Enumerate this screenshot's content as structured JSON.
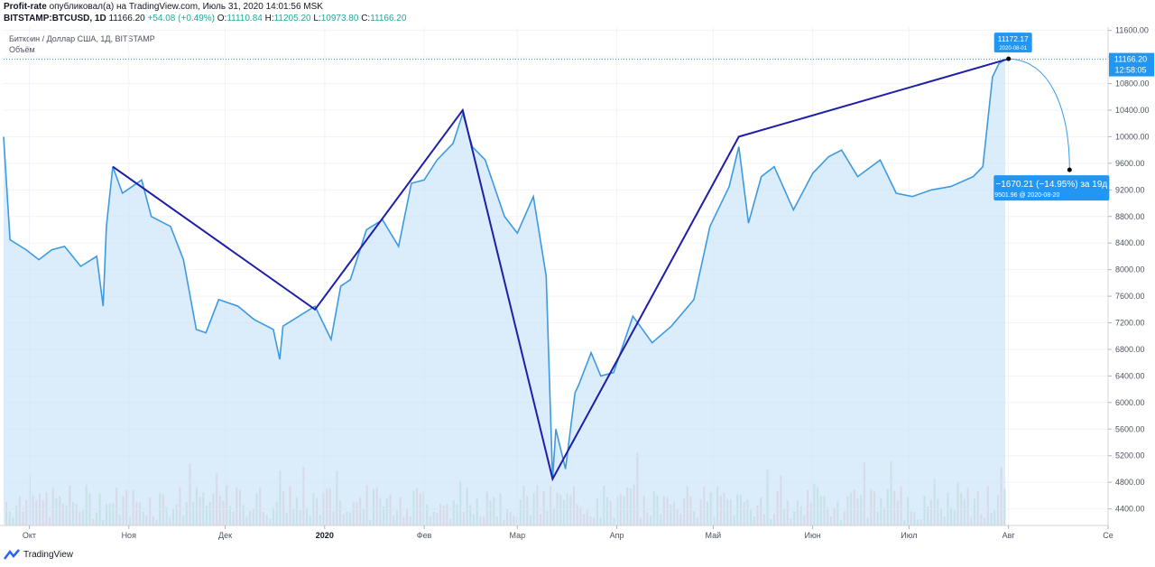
{
  "header": {
    "author": "Profit-rate",
    "published_text": "опубликовал(а) на TradingView.com, Июль 31, 2020 14:01:56 MSK",
    "symbol": "BITSTAMP:BTCUSD, 1D",
    "last_price": "11166.20",
    "change": "+54.08 (+0.49%)",
    "o_label": "O:",
    "o_value": "11110.84",
    "h_label": "H:",
    "h_value": "11205.20",
    "l_label": "L:",
    "l_value": "10973.80",
    "c_label": "C:",
    "c_value": "11166.20"
  },
  "legend": {
    "title": "Биткоин / Доллар США, 1Д, BITSTAMP",
    "volume": "Объём"
  },
  "price_label": {
    "value": "11166.20",
    "time": "12:58:05"
  },
  "callout_top": {
    "value": "11172.17",
    "date": "2020-08-01"
  },
  "callout_bottom": {
    "change": "−1670.21 (−14.95%) за 19д",
    "sub": "9501.96 @ 2020-08-20"
  },
  "footer": {
    "brand": "TradingView"
  },
  "colors": {
    "line": "#3d9ae0",
    "area": "#cfe6f8",
    "zigzag": "#1e1ea8",
    "vol_up": "#a7d7b0",
    "vol_down": "#f2b3b5",
    "label_bg": "#2196f3"
  },
  "chart_data": {
    "type": "line",
    "title": "Биткоин / Доллар США, 1Д, BITSTAMP",
    "x_tick_labels": [
      "Окт",
      "Ноя",
      "Дек",
      "2020",
      "Фев",
      "Мар",
      "Апр",
      "Май",
      "Июн",
      "Июл",
      "Авг",
      "Се"
    ],
    "y_tick_labels": [
      4400,
      4800,
      5200,
      5600,
      6000,
      6400,
      6800,
      7200,
      7600,
      8000,
      8400,
      8800,
      9200,
      9600,
      10000,
      10400,
      10800,
      11200,
      11600
    ],
    "ylim": [
      4150,
      11650
    ],
    "series": [
      {
        "values": [
          [
            "2019-09-23",
            10000
          ],
          [
            "2019-09-25",
            8450
          ],
          [
            "2019-09-30",
            8300
          ],
          [
            "2019-10-04",
            8150
          ],
          [
            "2019-10-08",
            8300
          ],
          [
            "2019-10-12",
            8350
          ],
          [
            "2019-10-17",
            8050
          ],
          [
            "2019-10-22",
            8200
          ],
          [
            "2019-10-24",
            7450
          ],
          [
            "2019-10-25",
            8650
          ],
          [
            "2019-10-27",
            9550
          ],
          [
            "2019-10-30",
            9150
          ],
          [
            "2019-11-05",
            9350
          ],
          [
            "2019-11-08",
            8800
          ],
          [
            "2019-11-14",
            8650
          ],
          [
            "2019-11-18",
            8150
          ],
          [
            "2019-11-22",
            7100
          ],
          [
            "2019-11-25",
            7050
          ],
          [
            "2019-11-29",
            7550
          ],
          [
            "2019-12-05",
            7450
          ],
          [
            "2019-12-10",
            7250
          ],
          [
            "2019-12-16",
            7100
          ],
          [
            "2019-12-18",
            6650
          ],
          [
            "2019-12-19",
            7150
          ],
          [
            "2019-12-24",
            7300
          ],
          [
            "2019-12-29",
            7450
          ],
          [
            "2020-01-03",
            6950
          ],
          [
            "2020-01-06",
            7750
          ],
          [
            "2020-01-09",
            7850
          ],
          [
            "2020-01-14",
            8600
          ],
          [
            "2020-01-19",
            8750
          ],
          [
            "2020-01-24",
            8350
          ],
          [
            "2020-01-28",
            9300
          ],
          [
            "2020-02-01",
            9350
          ],
          [
            "2020-02-05",
            9650
          ],
          [
            "2020-02-10",
            9900
          ],
          [
            "2020-02-13",
            10350
          ],
          [
            "2020-02-16",
            9850
          ],
          [
            "2020-02-20",
            9650
          ],
          [
            "2020-02-26",
            8800
          ],
          [
            "2020-03-01",
            8550
          ],
          [
            "2020-03-06",
            9100
          ],
          [
            "2020-03-10",
            7900
          ],
          [
            "2020-03-12",
            4850
          ],
          [
            "2020-03-13",
            5600
          ],
          [
            "2020-03-16",
            5000
          ],
          [
            "2020-03-19",
            6150
          ],
          [
            "2020-03-20",
            6250
          ],
          [
            "2020-03-24",
            6750
          ],
          [
            "2020-03-27",
            6400
          ],
          [
            "2020-03-31",
            6450
          ],
          [
            "2020-04-06",
            7300
          ],
          [
            "2020-04-12",
            6900
          ],
          [
            "2020-04-18",
            7150
          ],
          [
            "2020-04-25",
            7550
          ],
          [
            "2020-04-30",
            8650
          ],
          [
            "2020-05-06",
            9250
          ],
          [
            "2020-05-09",
            9850
          ],
          [
            "2020-05-12",
            8700
          ],
          [
            "2020-05-16",
            9400
          ],
          [
            "2020-05-20",
            9550
          ],
          [
            "2020-05-26",
            8900
          ],
          [
            "2020-06-01",
            9450
          ],
          [
            "2020-06-06",
            9700
          ],
          [
            "2020-06-10",
            9800
          ],
          [
            "2020-06-15",
            9400
          ],
          [
            "2020-06-22",
            9650
          ],
          [
            "2020-06-27",
            9150
          ],
          [
            "2020-07-02",
            9100
          ],
          [
            "2020-07-08",
            9200
          ],
          [
            "2020-07-14",
            9250
          ],
          [
            "2020-07-21",
            9400
          ],
          [
            "2020-07-24",
            9550
          ],
          [
            "2020-07-27",
            10900
          ],
          [
            "2020-07-29",
            11100
          ],
          [
            "2020-07-31",
            11166
          ]
        ]
      }
    ],
    "zigzag": [
      [
        "2019-10-27",
        9550
      ],
      [
        "2019-12-29",
        7400
      ],
      [
        "2020-02-13",
        10400
      ],
      [
        "2020-03-12",
        4850
      ],
      [
        "2020-05-09",
        10000
      ],
      [
        "2020-08-01",
        11172
      ]
    ],
    "projection": [
      [
        "2020-08-01",
        11172.17
      ],
      [
        "2020-08-20",
        9501.96
      ]
    ],
    "horizontal_line": 11166.2
  }
}
